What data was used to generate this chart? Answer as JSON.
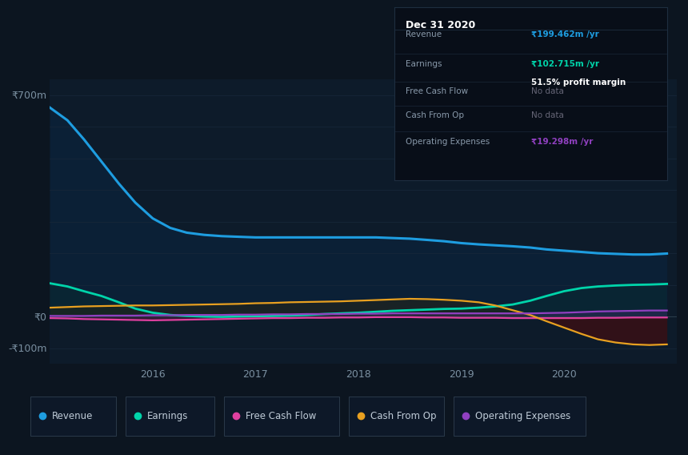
{
  "bg_color": "#0c1520",
  "chart_bg": "#0d1b2a",
  "title": "Dec 31 2020",
  "ylabel_700": "₹700m",
  "ylabel_0": "₹0",
  "ylabel_n100": "-₹100m",
  "x_years": [
    2015.0,
    2015.17,
    2015.33,
    2015.5,
    2015.67,
    2015.83,
    2016.0,
    2016.17,
    2016.33,
    2016.5,
    2016.67,
    2016.83,
    2017.0,
    2017.17,
    2017.33,
    2017.5,
    2017.67,
    2017.83,
    2018.0,
    2018.17,
    2018.33,
    2018.5,
    2018.67,
    2018.83,
    2019.0,
    2019.17,
    2019.33,
    2019.5,
    2019.67,
    2019.83,
    2020.0,
    2020.17,
    2020.33,
    2020.5,
    2020.67,
    2020.83,
    2021.0
  ],
  "revenue": [
    660,
    620,
    560,
    490,
    420,
    360,
    310,
    280,
    265,
    258,
    254,
    252,
    250,
    250,
    250,
    250,
    250,
    250,
    250,
    250,
    248,
    246,
    242,
    238,
    232,
    228,
    225,
    222,
    218,
    212,
    208,
    204,
    200,
    198,
    196,
    196,
    199
  ],
  "earnings": [
    105,
    95,
    80,
    65,
    45,
    25,
    12,
    5,
    2,
    0,
    -1,
    0,
    1,
    2,
    3,
    5,
    8,
    10,
    12,
    15,
    18,
    20,
    22,
    24,
    25,
    28,
    32,
    38,
    50,
    65,
    80,
    90,
    95,
    98,
    100,
    101,
    103
  ],
  "fcf": [
    -5,
    -6,
    -8,
    -9,
    -10,
    -11,
    -12,
    -11,
    -10,
    -9,
    -8,
    -7,
    -6,
    -5,
    -5,
    -4,
    -4,
    -3,
    -3,
    -2,
    -2,
    -2,
    -3,
    -3,
    -4,
    -4,
    -4,
    -5,
    -5,
    -5,
    -5,
    -5,
    -4,
    -4,
    -3,
    -3,
    -3
  ],
  "cash_from_op": [
    28,
    30,
    32,
    33,
    34,
    35,
    35,
    36,
    37,
    38,
    39,
    40,
    42,
    43,
    45,
    46,
    47,
    48,
    50,
    52,
    54,
    56,
    55,
    53,
    50,
    45,
    35,
    20,
    5,
    -15,
    -35,
    -55,
    -72,
    -82,
    -88,
    -90,
    -88
  ],
  "op_expenses": [
    2,
    2,
    2,
    3,
    3,
    3,
    4,
    4,
    5,
    5,
    5,
    6,
    6,
    7,
    7,
    8,
    8,
    8,
    9,
    9,
    10,
    10,
    10,
    10,
    10,
    10,
    10,
    10,
    10,
    11,
    12,
    14,
    16,
    17,
    18,
    19,
    19
  ],
  "revenue_color": "#1e9de0",
  "earnings_color": "#00d4aa",
  "fcf_color": "#e040a0",
  "cash_from_op_color": "#e8a020",
  "op_expenses_color": "#9040c0",
  "xlim": [
    2015.0,
    2021.1
  ],
  "ylim": [
    -150,
    750
  ],
  "x_ticks": [
    2016,
    2017,
    2018,
    2019,
    2020
  ],
  "grid_color": "#18283a",
  "zero_line_color": "#2a3d4a",
  "info_box": {
    "title": "Dec 31 2020",
    "rows": [
      {
        "label": "Revenue",
        "value": "₹199.462m /yr",
        "value_color": "#1e9de0",
        "extra": null
      },
      {
        "label": "Earnings",
        "value": "₹102.715m /yr",
        "value_color": "#00d4aa",
        "extra": "51.5% profit margin"
      },
      {
        "label": "Free Cash Flow",
        "value": "No data",
        "value_color": "#666677",
        "extra": null
      },
      {
        "label": "Cash From Op",
        "value": "No data",
        "value_color": "#666677",
        "extra": null
      },
      {
        "label": "Operating Expenses",
        "value": "₹19.298m /yr",
        "value_color": "#9040c0",
        "extra": null
      }
    ]
  },
  "legend_items": [
    {
      "label": "Revenue",
      "color": "#1e9de0"
    },
    {
      "label": "Earnings",
      "color": "#00d4aa"
    },
    {
      "label": "Free Cash Flow",
      "color": "#e040a0"
    },
    {
      "label": "Cash From Op",
      "color": "#e8a020"
    },
    {
      "label": "Operating Expenses",
      "color": "#9040c0"
    }
  ]
}
